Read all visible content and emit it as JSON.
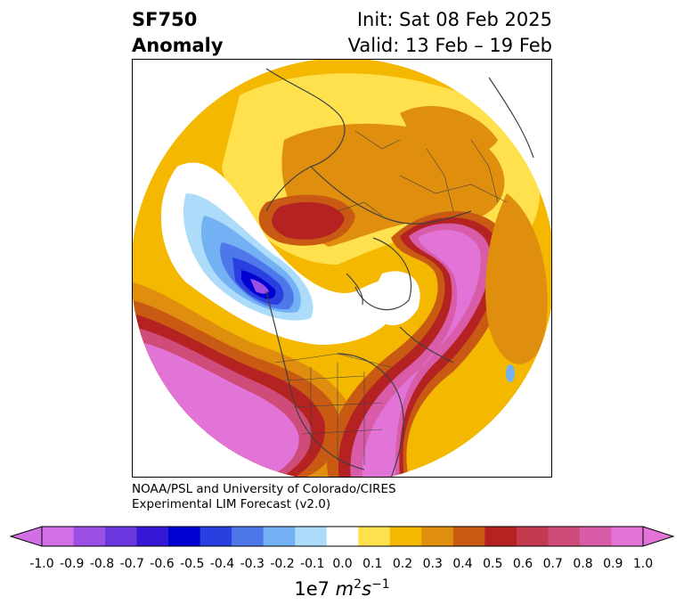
{
  "title": {
    "field": "SF750",
    "type": "Anomaly",
    "init": "Init: Sat 08 Feb 2025",
    "valid": "Valid: 13 Feb – 19 Feb"
  },
  "credit": {
    "line1": "NOAA/PSL and University of Colorado/CIRES",
    "line2": "Experimental LIM Forecast (v2.0)"
  },
  "colorbar": {
    "unit_prefix": "1e7 ",
    "unit_m": "m",
    "unit_s": "s",
    "unit_m_exp": "2",
    "unit_s_exp": "−1",
    "ticks": [
      "-1.0",
      "-0.9",
      "-0.8",
      "-0.7",
      "-0.6",
      "-0.5",
      "-0.4",
      "-0.3",
      "-0.2",
      "-0.1",
      "0.0",
      "0.1",
      "0.2",
      "0.3",
      "0.4",
      "0.5",
      "0.6",
      "0.7",
      "0.8",
      "0.9",
      "1.0"
    ],
    "colors": [
      "#d26ee6",
      "#9b50e4",
      "#6a37de",
      "#3418d6",
      "#0000d2",
      "#2a3fe0",
      "#4e78ea",
      "#74b0f4",
      "#addcfa",
      "#ffffff",
      "#ffe14e",
      "#f4b800",
      "#e08e0e",
      "#c85a14",
      "#b42222",
      "#c23a4e",
      "#cf4c7a",
      "#d85ca8",
      "#e274d8"
    ],
    "left_extend": "#d26ee6",
    "right_extend": "#e274d8"
  },
  "map": {
    "projection": "north polar stereographic",
    "features": [
      "anomaly-shading",
      "coastlines",
      "country-borders",
      "state-borders"
    ]
  }
}
